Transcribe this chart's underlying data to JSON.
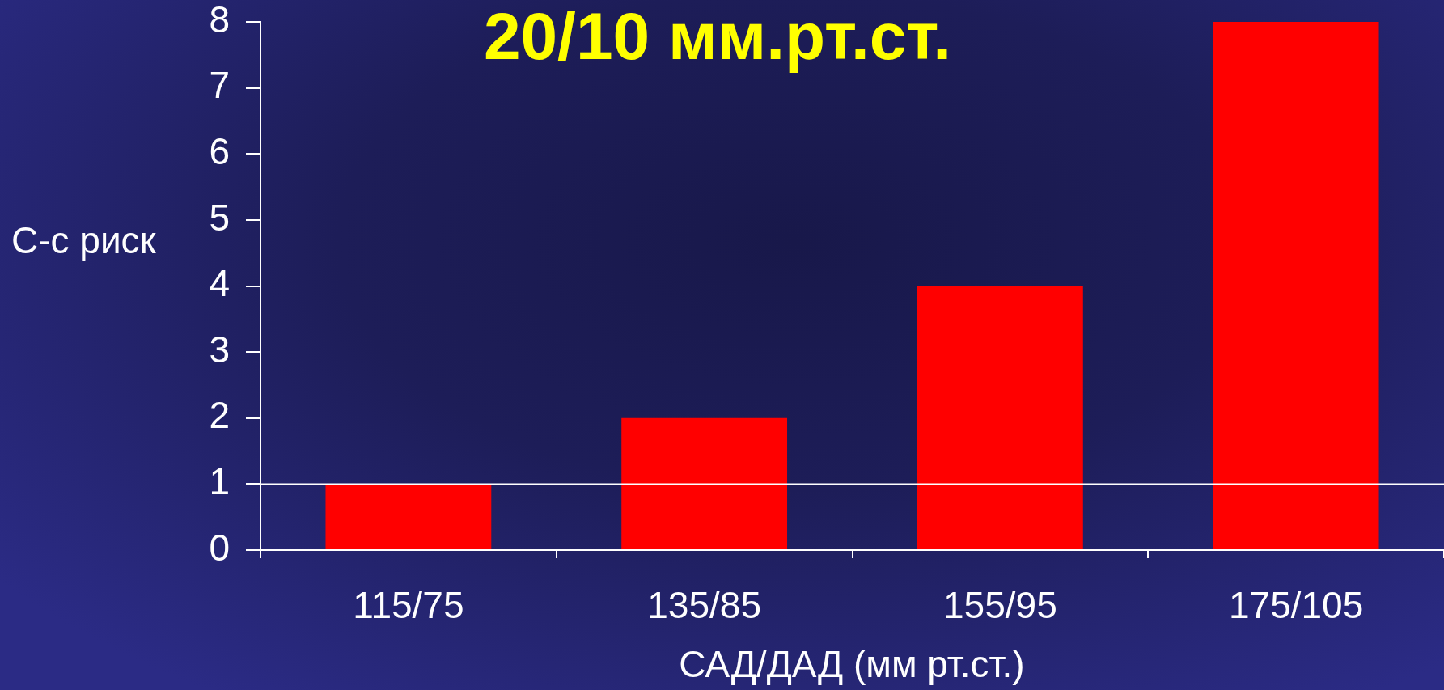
{
  "chart_data": {
    "type": "bar",
    "title": "20/10 мм.рт.ст.",
    "xlabel": "САД/ДАД (мм рт.ст.)",
    "ylabel": "С-с риск",
    "categories": [
      "115/75",
      "135/85",
      "155/95",
      "175/105"
    ],
    "values": [
      1,
      2,
      4,
      8
    ],
    "color": "#ff0000",
    "ylim": [
      0,
      8
    ],
    "yticks": [
      0,
      1,
      2,
      3,
      4,
      5,
      6,
      7,
      8
    ],
    "ref_lines": [
      {
        "axis": "y",
        "value": 1,
        "color": "#ffffff"
      }
    ]
  }
}
